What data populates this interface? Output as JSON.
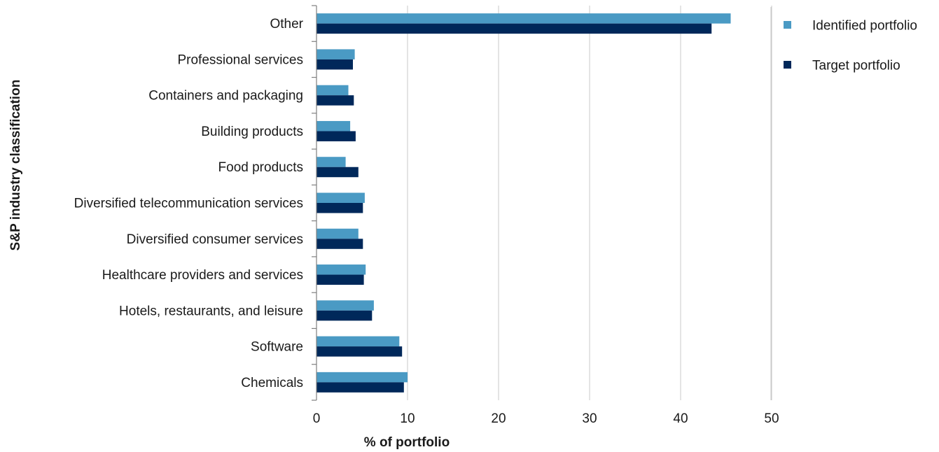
{
  "chart_data": {
    "type": "bar",
    "orientation": "horizontal",
    "categories": [
      "Other",
      "Professional services",
      "Containers and packaging",
      "Building products",
      "Food products",
      "Diversified telecommunication services",
      "Diversified consumer services",
      "Healthcare providers and services",
      "Hotels, restaurants, and leisure",
      "Software",
      "Chemicals"
    ],
    "series": [
      {
        "name": "Identified portfolio",
        "color": "#4a9ac4",
        "values": [
          45.5,
          4.2,
          3.5,
          3.7,
          3.2,
          5.3,
          4.6,
          5.4,
          6.3,
          9.1,
          10.0
        ]
      },
      {
        "name": "Target portfolio",
        "color": "#00285a",
        "values": [
          43.4,
          4.0,
          4.1,
          4.3,
          4.6,
          5.1,
          5.1,
          5.2,
          6.1,
          9.4,
          9.6
        ]
      }
    ],
    "xlabel": "% of portfolio",
    "ylabel": "S&P industry classification",
    "xlim": [
      0,
      50
    ],
    "xticks": [
      0,
      10,
      20,
      30,
      40,
      50
    ],
    "grid": "vertical",
    "legend": "top-right"
  }
}
